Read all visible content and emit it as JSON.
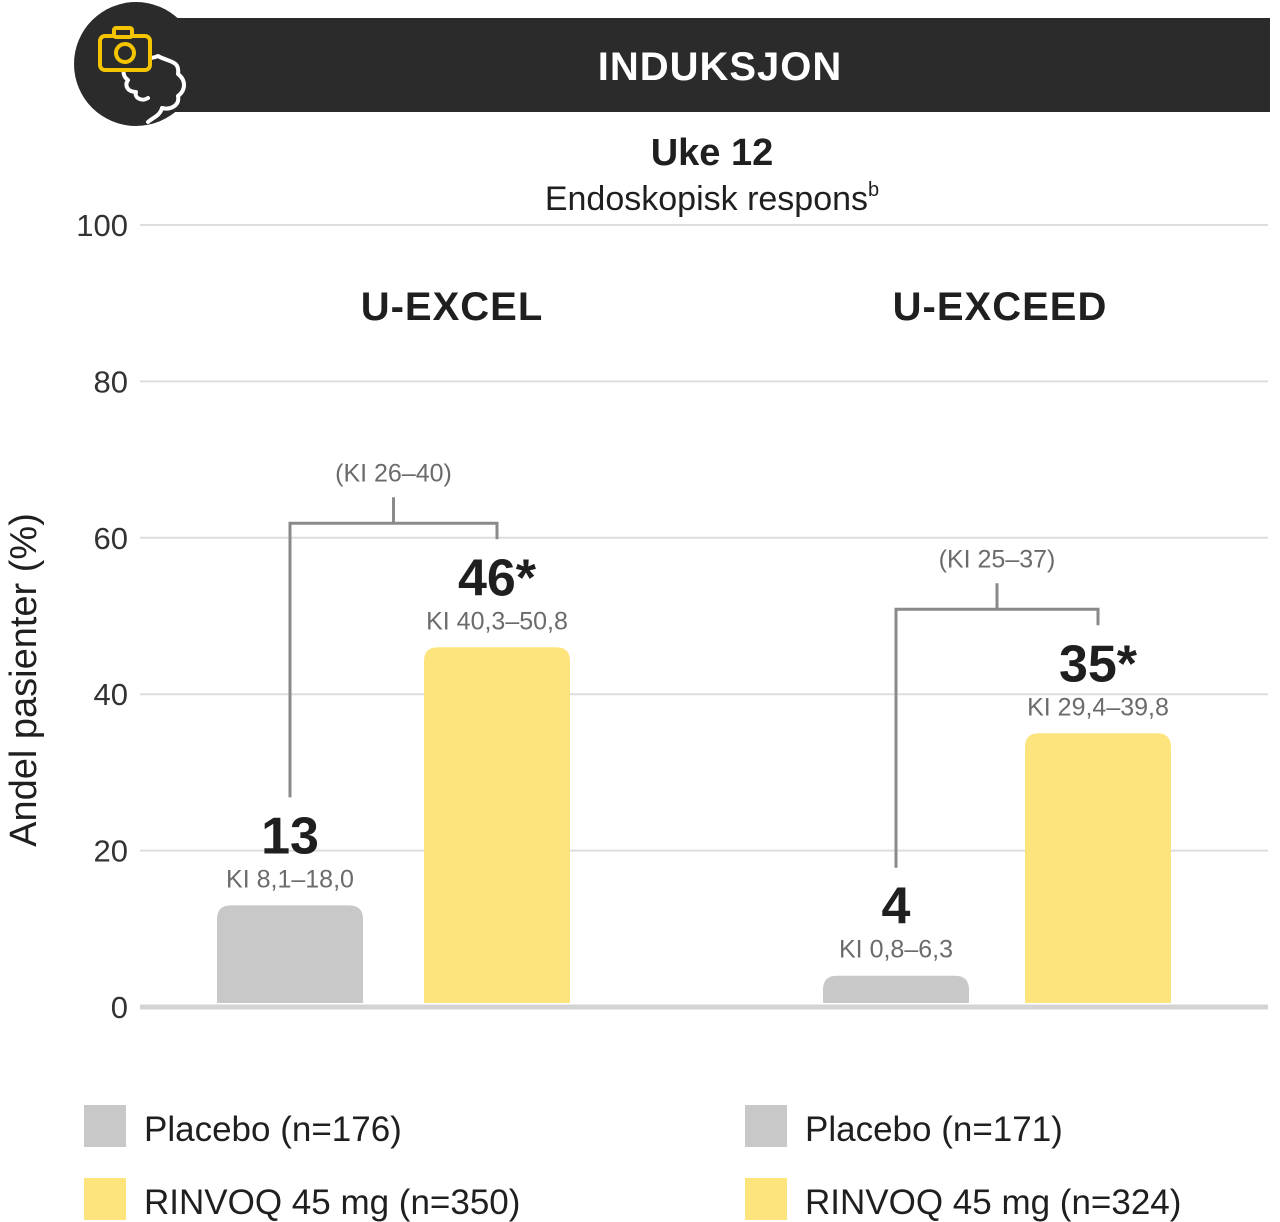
{
  "header": {
    "title": "INDUKSJON",
    "icon": "camera-intestine-icon",
    "colors": {
      "banner": "#2b2b2b",
      "icon_bg": "#2b2b2b",
      "camera": "#f5c400",
      "intestine": "#ffffff"
    }
  },
  "chart_data": {
    "type": "bar",
    "title": "Uke 12",
    "subtitle": "Endoskopisk respons",
    "subtitle_superscript": "b",
    "ylabel": "Andel pasienter  (%)",
    "ylim": [
      0,
      100
    ],
    "yticks": [
      0,
      20,
      40,
      60,
      80,
      100
    ],
    "grid": true,
    "colors": {
      "placebo": "#c8c8c8",
      "rinvoq": "#fde47c"
    },
    "groups": [
      {
        "name": "U-EXCEL",
        "bars": [
          {
            "series": "placebo",
            "value": 13,
            "value_label": "13",
            "ci_label": "KI 8,1–18,0"
          },
          {
            "series": "rinvoq",
            "value": 46,
            "value_label": "46*",
            "ci_label": "KI 40,3–50,8"
          }
        ],
        "difference_ci": "(KI 26–40)"
      },
      {
        "name": "U-EXCEED",
        "bars": [
          {
            "series": "placebo",
            "value": 4,
            "value_label": "4",
            "ci_label": "KI 0,8–6,3"
          },
          {
            "series": "rinvoq",
            "value": 35,
            "value_label": "35*",
            "ci_label": "KI 29,4–39,8"
          }
        ],
        "difference_ci": "(KI 25–37)"
      }
    ],
    "legend": [
      [
        {
          "series": "placebo",
          "label": "Placebo (n=176)"
        },
        {
          "series": "rinvoq",
          "label": "RINVOQ 45 mg (n=350)"
        }
      ],
      [
        {
          "series": "placebo",
          "label": "Placebo (n=171)"
        },
        {
          "series": "rinvoq",
          "label": "RINVOQ 45 mg (n=324)"
        }
      ]
    ]
  }
}
